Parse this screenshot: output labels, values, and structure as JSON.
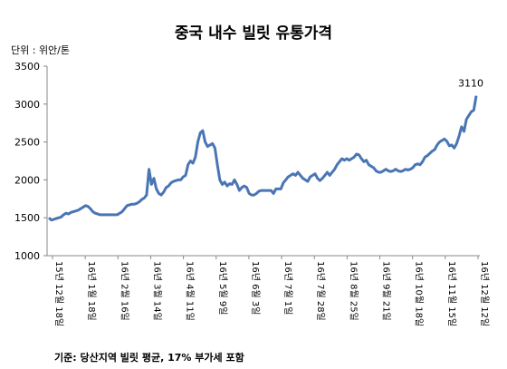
{
  "chart_data": {
    "type": "line",
    "title": "중국 내수 빌릿 유통가격",
    "unit_label": "단위 : 위안/톤",
    "source": "기준: 당산지역 빌릿 평균, 17% 부가세 포함",
    "y_ticks": [
      "1000",
      "1500",
      "2000",
      "2500",
      "3000",
      "3500"
    ],
    "ylim": [
      1000,
      3500
    ],
    "x_tick_labels": [
      "15년 12월 18일",
      "16년 1월 18일",
      "16년 2월 16일",
      "16년 3월 14일",
      "16년 4월 11일",
      "16년 5월 9일",
      "16년 6월 3일",
      "16년 7월 1일",
      "16년 7월 28일",
      "16년 8월 25일",
      "16년 9월 21일",
      "16년 10월 18일",
      "16년 11월 15일",
      "16년 12월 12일"
    ],
    "end_label": "3110",
    "line_color": "#4a75b4",
    "values": [
      1500,
      1470,
      1480,
      1490,
      1500,
      1510,
      1540,
      1560,
      1550,
      1570,
      1580,
      1590,
      1600,
      1620,
      1640,
      1660,
      1650,
      1620,
      1580,
      1560,
      1550,
      1540,
      1540,
      1540,
      1540,
      1540,
      1540,
      1540,
      1540,
      1560,
      1580,
      1620,
      1660,
      1670,
      1680,
      1680,
      1690,
      1710,
      1740,
      1760,
      1800,
      2140,
      1940,
      2020,
      1880,
      1820,
      1800,
      1840,
      1900,
      1920,
      1960,
      1980,
      1990,
      2000,
      2000,
      2040,
      2060,
      2200,
      2250,
      2220,
      2300,
      2500,
      2620,
      2650,
      2500,
      2440,
      2460,
      2480,
      2420,
      2200,
      2000,
      1940,
      1970,
      1920,
      1950,
      1940,
      2000,
      1940,
      1860,
      1900,
      1920,
      1900,
      1820,
      1800,
      1800,
      1820,
      1850,
      1860,
      1860,
      1860,
      1860,
      1860,
      1820,
      1880,
      1880,
      1880,
      1960,
      2000,
      2040,
      2060,
      2080,
      2060,
      2100,
      2060,
      2020,
      2000,
      1980,
      2040,
      2060,
      2080,
      2020,
      1990,
      2020,
      2060,
      2100,
      2060,
      2100,
      2140,
      2200,
      2240,
      2280,
      2260,
      2280,
      2260,
      2280,
      2300,
      2340,
      2330,
      2280,
      2240,
      2260,
      2200,
      2180,
      2160,
      2120,
      2100,
      2100,
      2120,
      2140,
      2120,
      2110,
      2120,
      2140,
      2120,
      2110,
      2120,
      2140,
      2130,
      2140,
      2160,
      2200,
      2210,
      2200,
      2240,
      2300,
      2320,
      2350,
      2380,
      2400,
      2460,
      2500,
      2520,
      2540,
      2510,
      2450,
      2460,
      2420,
      2480,
      2580,
      2700,
      2640,
      2800,
      2850,
      2900,
      2920,
      3110
    ]
  }
}
